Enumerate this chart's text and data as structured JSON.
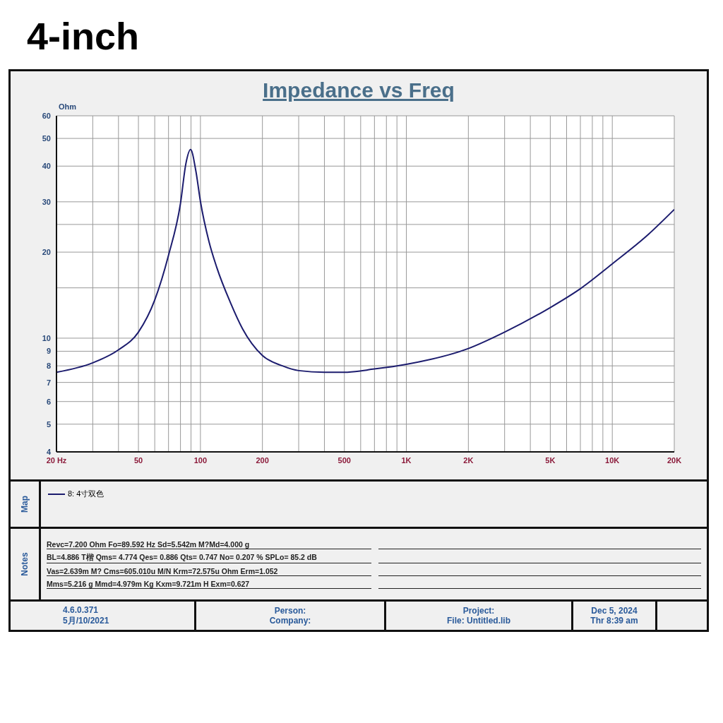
{
  "chart_data": {
    "type": "line",
    "title": "4-inch",
    "subtitle": "Impedance vs Freq",
    "ylabel": "Ohm",
    "x": [
      20,
      30,
      40,
      50,
      60,
      70,
      80,
      85,
      89.6,
      95,
      100,
      110,
      120,
      140,
      160,
      200,
      250,
      300,
      400,
      500,
      700,
      1000,
      2000,
      3000,
      5000,
      7000,
      10000,
      15000,
      20000
    ],
    "series": [
      {
        "name": "8: 4寸双色",
        "color": "#1c1c6e",
        "values": [
          7.6,
          8.2,
          9.1,
          10.5,
          13.6,
          19.5,
          29.6,
          40.8,
          45.7,
          38.5,
          30.1,
          21.8,
          17.7,
          13.3,
          10.8,
          8.7,
          8.0,
          7.7,
          7.6,
          7.6,
          7.8,
          8.1,
          9.2,
          10.5,
          12.8,
          14.9,
          18.2,
          23.1,
          28.2
        ]
      }
    ],
    "xlim": [
      20,
      20000
    ],
    "xticks": [
      {
        "value": 20,
        "label": "20  Hz"
      },
      {
        "value": 30,
        "label": null
      },
      {
        "value": 40,
        "label": null
      },
      50,
      {
        "value": 60,
        "label": null
      },
      {
        "value": 70,
        "label": null
      },
      {
        "value": 80,
        "label": null
      },
      {
        "value": 90,
        "label": null
      },
      100,
      200,
      {
        "value": 300,
        "label": null
      },
      {
        "value": 400,
        "label": null
      },
      500,
      {
        "value": 600,
        "label": null
      },
      {
        "value": 700,
        "label": null
      },
      {
        "value": 800,
        "label": null
      },
      {
        "value": 900,
        "label": null
      },
      {
        "value": 1000,
        "label": "1K"
      },
      {
        "value": 2000,
        "label": "2K"
      },
      {
        "value": 3000,
        "label": null
      },
      {
        "value": 4000,
        "label": null
      },
      {
        "value": 5000,
        "label": "5K"
      },
      {
        "value": 6000,
        "label": null
      },
      {
        "value": 7000,
        "label": null
      },
      {
        "value": 8000,
        "label": null
      },
      {
        "value": 9000,
        "label": null
      },
      {
        "value": 10000,
        "label": "10K"
      },
      {
        "value": 20000,
        "label": "20K"
      }
    ],
    "ylim": [
      4,
      60
    ],
    "yticks": [
      4,
      5,
      6,
      7,
      8,
      9,
      10,
      {
        "value": 15,
        "label": null
      },
      20,
      {
        "value": 25,
        "label": null
      },
      30,
      40,
      50,
      60
    ],
    "log": "xy",
    "grid": true,
    "legend": "bottom",
    "marker": "none",
    "line_style": "solid",
    "annotations": [
      "Map",
      "Notes",
      "Revc=7.200 Ohm  Fo=89.592 Hz  Sd=5.542m M?Md=4.000 g",
      "BL=4.886 T楷  Qms= 4.774  Qes= 0.886  Qts= 0.747  No= 0.207 %  SPLo= 85.2 dB",
      "Vas=2.639m M? Cms=605.010u M/N  Krm=72.575u Ohm  Erm=1.052",
      "Mms=5.216 g  Mmd=4.979m Kg  Kxm=9.721m H  Exm=0.627",
      "4.6.0.371",
      "5月/10/2021",
      "Person:",
      "Company:",
      "Project:",
      "File: Untitled.lib",
      "Dec  5, 2024",
      "Thr  8:39 am"
    ]
  }
}
